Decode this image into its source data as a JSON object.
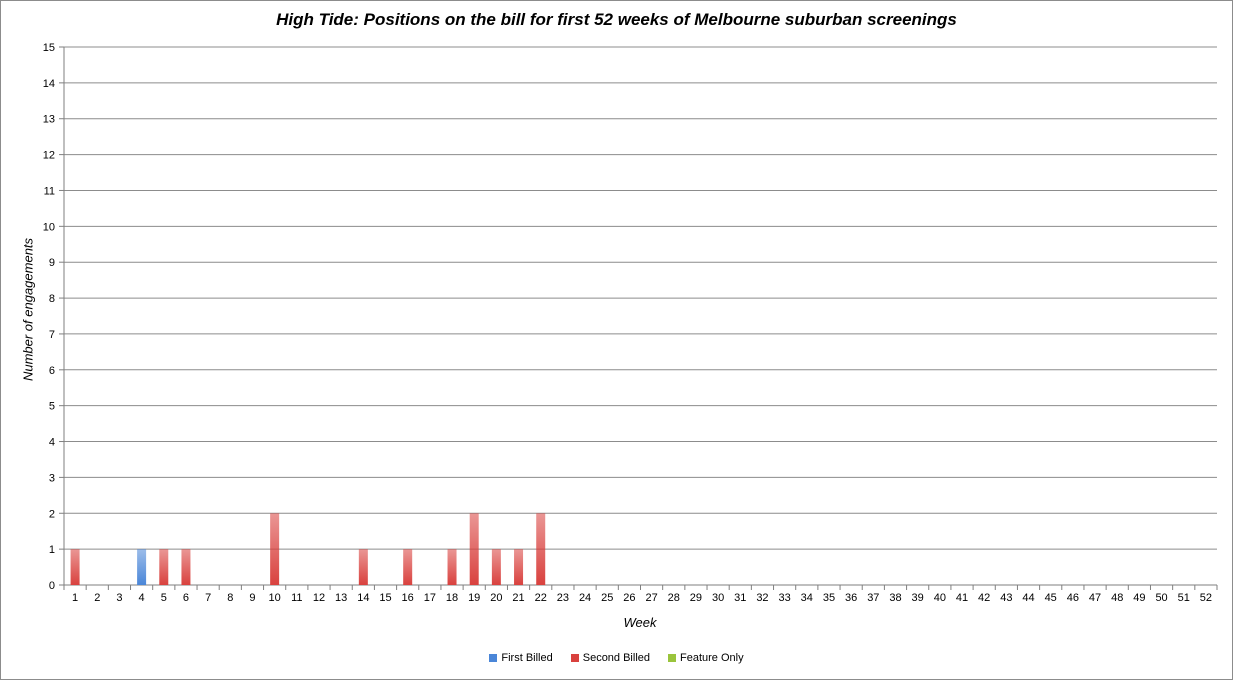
{
  "chart_data": {
    "type": "bar",
    "stacked": true,
    "title": "High Tide: Positions on the bill for first 52 weeks of Melbourne suburban screenings",
    "xlabel": "Week",
    "ylabel": "Number of engagements",
    "ylim": [
      0,
      15
    ],
    "yticks": [
      "0",
      "1",
      "2",
      "3",
      "4",
      "5",
      "6",
      "7",
      "8",
      "9",
      "10",
      "11",
      "12",
      "13",
      "14",
      "15"
    ],
    "grid": true,
    "legend_position": "bottom",
    "categories": [
      "1",
      "2",
      "3",
      "4",
      "5",
      "6",
      "7",
      "8",
      "9",
      "10",
      "11",
      "12",
      "13",
      "14",
      "15",
      "16",
      "17",
      "18",
      "19",
      "20",
      "21",
      "22",
      "23",
      "24",
      "25",
      "26",
      "27",
      "28",
      "29",
      "30",
      "31",
      "32",
      "33",
      "34",
      "35",
      "36",
      "37",
      "38",
      "39",
      "40",
      "41",
      "42",
      "43",
      "44",
      "45",
      "46",
      "47",
      "48",
      "49",
      "50",
      "51",
      "52"
    ],
    "series": [
      {
        "name": "First Billed",
        "color": "#4a86d8",
        "values": [
          0,
          0,
          0,
          1,
          0,
          0,
          0,
          0,
          0,
          0,
          0,
          0,
          0,
          0,
          0,
          0,
          0,
          0,
          0,
          0,
          0,
          0,
          0,
          0,
          0,
          0,
          0,
          0,
          0,
          0,
          0,
          0,
          0,
          0,
          0,
          0,
          0,
          0,
          0,
          0,
          0,
          0,
          0,
          0,
          0,
          0,
          0,
          0,
          0,
          0,
          0,
          0
        ]
      },
      {
        "name": "Second Billed",
        "color": "#d9413e",
        "values": [
          1,
          0,
          0,
          0,
          1,
          1,
          0,
          0,
          0,
          2,
          0,
          0,
          0,
          1,
          0,
          1,
          0,
          1,
          2,
          1,
          1,
          2,
          0,
          0,
          0,
          0,
          0,
          0,
          0,
          0,
          0,
          0,
          0,
          0,
          0,
          0,
          0,
          0,
          0,
          0,
          0,
          0,
          0,
          0,
          0,
          0,
          0,
          0,
          0,
          0,
          0,
          0
        ]
      },
      {
        "name": "Feature Only",
        "color": "#9ac43c",
        "values": [
          0,
          0,
          0,
          0,
          0,
          0,
          0,
          0,
          0,
          0,
          0,
          0,
          0,
          0,
          0,
          0,
          0,
          0,
          0,
          0,
          0,
          0,
          0,
          0,
          0,
          0,
          0,
          0,
          0,
          0,
          0,
          0,
          0,
          0,
          0,
          0,
          0,
          0,
          0,
          0,
          0,
          0,
          0,
          0,
          0,
          0,
          0,
          0,
          0,
          0,
          0,
          0
        ]
      }
    ]
  }
}
